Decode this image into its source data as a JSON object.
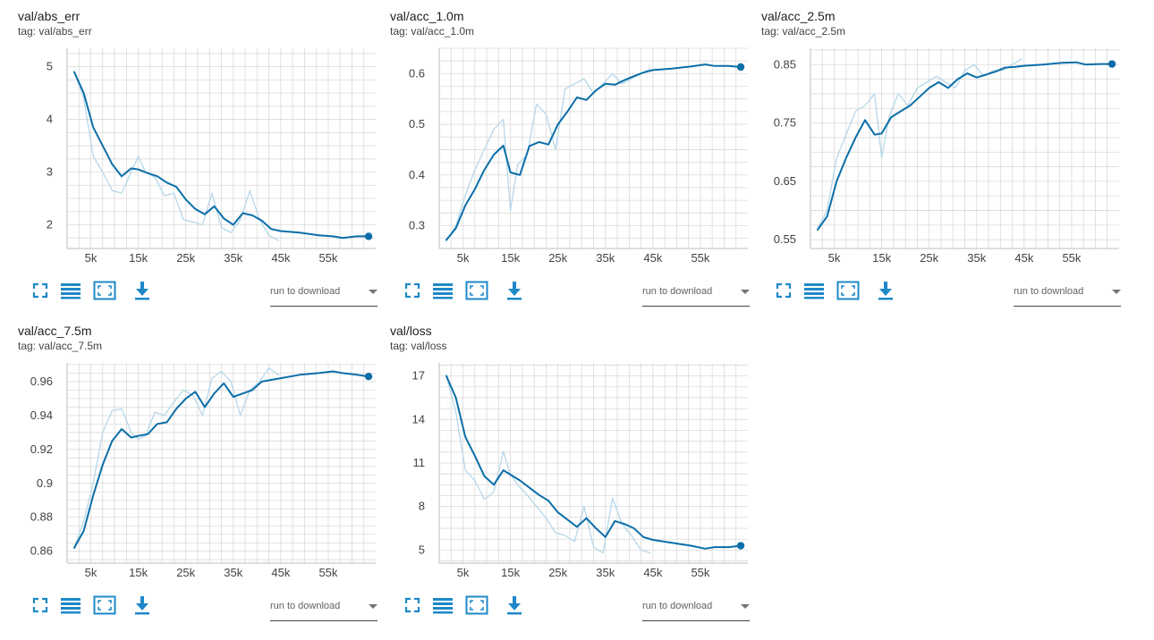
{
  "toolbar": {
    "fit_icon": "fullscreen-icon",
    "data_icon": "list-icon",
    "zoom_icon": "fit-domain-icon",
    "download_icon": "download-icon",
    "download_label": "run to download",
    "accent": "#1e88c8"
  },
  "colors": {
    "smoothed": "#0b6ea8",
    "raw": "#b6d7ea",
    "grid": "#dadada"
  },
  "chart_data": [
    {
      "type": "line",
      "title": "val/abs_err",
      "tag": "tag: val/abs_err",
      "xlim": [
        0,
        65000
      ],
      "ylim": [
        1.55,
        5.35
      ],
      "xticks": [
        5000,
        15000,
        25000,
        35000,
        45000,
        55000
      ],
      "xtick_labels": [
        "5k",
        "15k",
        "25k",
        "35k",
        "45k",
        "55k"
      ],
      "yticks": [
        2,
        3,
        4,
        5
      ],
      "ytick_labels": [
        "2",
        "3",
        "4",
        "5"
      ],
      "series": [
        {
          "role": "raw",
          "x": [
            1500,
            3500,
            5500,
            7500,
            9500,
            11500,
            13500,
            15000,
            16500,
            18500,
            20500,
            22500,
            24500,
            26500,
            28500,
            30500,
            32500,
            34500,
            36500,
            38500,
            40500,
            42500,
            44500
          ],
          "y": [
            4.9,
            4.4,
            3.3,
            3.0,
            2.65,
            2.6,
            3.0,
            3.3,
            3.0,
            2.9,
            2.55,
            2.6,
            2.1,
            2.05,
            2.0,
            2.6,
            1.95,
            1.85,
            2.1,
            2.65,
            2.1,
            1.8,
            1.7
          ]
        },
        {
          "role": "smoothed",
          "x": [
            1500,
            3500,
            5500,
            7500,
            9500,
            11500,
            13500,
            15000,
            17000,
            19000,
            21000,
            23000,
            25000,
            27000,
            29000,
            31000,
            33000,
            35000,
            37000,
            39000,
            41000,
            43000,
            45000,
            49000,
            53000,
            56000,
            58000,
            61000,
            63500
          ],
          "y": [
            4.9,
            4.5,
            3.85,
            3.5,
            3.15,
            2.92,
            3.07,
            3.05,
            2.98,
            2.92,
            2.8,
            2.72,
            2.48,
            2.3,
            2.2,
            2.35,
            2.12,
            2.0,
            2.22,
            2.18,
            2.08,
            1.92,
            1.88,
            1.85,
            1.8,
            1.78,
            1.75,
            1.78,
            1.78
          ]
        }
      ]
    },
    {
      "type": "line",
      "title": "val/acc_1.0m",
      "tag": "tag: val/acc_1.0m",
      "xlim": [
        0,
        65000
      ],
      "ylim": [
        0.255,
        0.65
      ],
      "xticks": [
        5000,
        15000,
        25000,
        35000,
        45000,
        55000
      ],
      "xtick_labels": [
        "5k",
        "15k",
        "25k",
        "35k",
        "45k",
        "55k"
      ],
      "yticks": [
        0.3,
        0.4,
        0.5,
        0.6
      ],
      "ytick_labels": [
        "0.3",
        "0.4",
        "0.5",
        "0.6"
      ],
      "series": [
        {
          "role": "raw",
          "x": [
            1500,
            3500,
            5500,
            7500,
            9500,
            11500,
            13500,
            15000,
            16500,
            18500,
            20500,
            22500,
            24500,
            26500,
            28500,
            30500,
            32500,
            34500,
            36500,
            38500,
            40500,
            42500,
            44500
          ],
          "y": [
            0.27,
            0.3,
            0.36,
            0.41,
            0.45,
            0.49,
            0.51,
            0.33,
            0.42,
            0.44,
            0.54,
            0.52,
            0.45,
            0.57,
            0.58,
            0.59,
            0.56,
            0.58,
            0.6,
            0.58,
            0.59,
            0.6,
            0.61
          ]
        },
        {
          "role": "smoothed",
          "x": [
            1500,
            3500,
            5500,
            7500,
            9500,
            11500,
            13500,
            15000,
            17000,
            19000,
            21000,
            23000,
            25000,
            27000,
            29000,
            31000,
            33000,
            35000,
            37000,
            39000,
            41000,
            43000,
            45000,
            49000,
            53000,
            56000,
            58000,
            61000,
            63500
          ],
          "y": [
            0.272,
            0.295,
            0.34,
            0.372,
            0.41,
            0.44,
            0.458,
            0.405,
            0.4,
            0.457,
            0.465,
            0.46,
            0.5,
            0.525,
            0.553,
            0.548,
            0.567,
            0.58,
            0.578,
            0.587,
            0.595,
            0.602,
            0.607,
            0.61,
            0.614,
            0.618,
            0.615,
            0.615,
            0.613
          ]
        }
      ]
    },
    {
      "type": "line",
      "title": "val/acc_2.5m",
      "tag": "tag: val/acc_2.5m",
      "xlim": [
        0,
        65000
      ],
      "ylim": [
        0.535,
        0.878
      ],
      "xticks": [
        5000,
        15000,
        25000,
        35000,
        45000,
        55000
      ],
      "xtick_labels": [
        "5k",
        "15k",
        "25k",
        "35k",
        "45k",
        "55k"
      ],
      "yticks": [
        0.55,
        0.65,
        0.75,
        0.85
      ],
      "ytick_labels": [
        "0.55",
        "0.65",
        "0.75",
        "0.85"
      ],
      "series": [
        {
          "role": "raw",
          "x": [
            1500,
            3500,
            5500,
            7500,
            9500,
            11500,
            13500,
            15000,
            16500,
            18500,
            20500,
            22500,
            24500,
            26500,
            28500,
            30500,
            32500,
            34500,
            36500,
            38500,
            40500,
            42500,
            44500
          ],
          "y": [
            0.57,
            0.6,
            0.69,
            0.73,
            0.77,
            0.78,
            0.8,
            0.69,
            0.76,
            0.8,
            0.78,
            0.81,
            0.82,
            0.83,
            0.82,
            0.81,
            0.84,
            0.85,
            0.83,
            0.84,
            0.84,
            0.85,
            0.86
          ]
        },
        {
          "role": "smoothed",
          "x": [
            1500,
            3500,
            5500,
            7500,
            9500,
            11500,
            13500,
            15000,
            17000,
            19000,
            21000,
            23000,
            25000,
            27000,
            29000,
            31000,
            33000,
            35000,
            37000,
            39000,
            41000,
            43000,
            45000,
            49000,
            53000,
            56000,
            58000,
            61000,
            63500
          ],
          "y": [
            0.567,
            0.59,
            0.65,
            0.69,
            0.725,
            0.755,
            0.73,
            0.732,
            0.76,
            0.77,
            0.78,
            0.795,
            0.81,
            0.82,
            0.81,
            0.825,
            0.835,
            0.828,
            0.833,
            0.838,
            0.845,
            0.846,
            0.848,
            0.85,
            0.853,
            0.854,
            0.85,
            0.851,
            0.851
          ]
        }
      ]
    },
    {
      "type": "line",
      "title": "val/acc_7.5m",
      "tag": "tag: val/acc_7.5m",
      "xlim": [
        0,
        65000
      ],
      "ylim": [
        0.853,
        0.971
      ],
      "xticks": [
        5000,
        15000,
        25000,
        35000,
        45000,
        55000
      ],
      "xtick_labels": [
        "5k",
        "15k",
        "25k",
        "35k",
        "45k",
        "55k"
      ],
      "yticks": [
        0.86,
        0.88,
        0.9,
        0.92,
        0.94,
        0.96
      ],
      "ytick_labels": [
        "0.86",
        "0.88",
        "0.9",
        "0.92",
        "0.94",
        "0.96"
      ],
      "series": [
        {
          "role": "raw",
          "x": [
            1500,
            3500,
            5500,
            7500,
            9500,
            11500,
            13500,
            15000,
            16500,
            18500,
            20500,
            22500,
            24500,
            26500,
            28500,
            30500,
            32500,
            34500,
            36500,
            38500,
            40500,
            42500,
            44500
          ],
          "y": [
            0.862,
            0.878,
            0.9,
            0.93,
            0.943,
            0.944,
            0.93,
            0.926,
            0.928,
            0.942,
            0.94,
            0.948,
            0.955,
            0.952,
            0.94,
            0.962,
            0.966,
            0.96,
            0.94,
            0.955,
            0.96,
            0.968,
            0.964
          ]
        },
        {
          "role": "smoothed",
          "x": [
            1500,
            3500,
            5500,
            7500,
            9500,
            11500,
            13500,
            15000,
            17000,
            19000,
            21000,
            23000,
            25000,
            27000,
            29000,
            31000,
            33000,
            35000,
            37000,
            39000,
            41000,
            43000,
            45000,
            49000,
            53000,
            56000,
            58000,
            61000,
            63500
          ],
          "y": [
            0.862,
            0.872,
            0.893,
            0.911,
            0.925,
            0.932,
            0.927,
            0.928,
            0.929,
            0.935,
            0.936,
            0.944,
            0.95,
            0.954,
            0.945,
            0.953,
            0.959,
            0.951,
            0.953,
            0.955,
            0.96,
            0.961,
            0.962,
            0.964,
            0.965,
            0.966,
            0.965,
            0.964,
            0.963
          ]
        }
      ]
    },
    {
      "type": "line",
      "title": "val/loss",
      "tag": "tag: val/loss",
      "xlim": [
        0,
        65000
      ],
      "ylim": [
        4.1,
        17.9
      ],
      "xticks": [
        5000,
        15000,
        25000,
        35000,
        45000,
        55000
      ],
      "xtick_labels": [
        "5k",
        "15k",
        "25k",
        "35k",
        "45k",
        "55k"
      ],
      "yticks": [
        5,
        8,
        11,
        14,
        17
      ],
      "ytick_labels": [
        "5",
        "8",
        "11",
        "14",
        "17"
      ],
      "series": [
        {
          "role": "raw",
          "x": [
            1500,
            3500,
            5500,
            7500,
            9500,
            11500,
            13500,
            15000,
            16500,
            18500,
            20500,
            22500,
            24500,
            26500,
            28500,
            30500,
            32500,
            34500,
            36500,
            38500,
            40500,
            42500,
            44500
          ],
          "y": [
            17,
            14.5,
            10.5,
            9.8,
            8.5,
            9.0,
            11.8,
            10.2,
            9.5,
            8.8,
            8.0,
            7.2,
            6.2,
            6.0,
            5.6,
            8.0,
            5.2,
            4.8,
            8.6,
            6.8,
            6.0,
            5.0,
            4.8
          ]
        },
        {
          "role": "smoothed",
          "x": [
            1500,
            3500,
            5500,
            7500,
            9500,
            11500,
            13500,
            15000,
            17000,
            19000,
            21000,
            23000,
            25000,
            27000,
            29000,
            31000,
            33000,
            35000,
            37000,
            39000,
            41000,
            43000,
            45000,
            49000,
            53000,
            56000,
            58000,
            61000,
            63500
          ],
          "y": [
            17,
            15.5,
            12.8,
            11.5,
            10.1,
            9.5,
            10.5,
            10.2,
            9.8,
            9.3,
            8.8,
            8.4,
            7.6,
            7.1,
            6.6,
            7.2,
            6.5,
            5.9,
            7.0,
            6.8,
            6.5,
            5.9,
            5.7,
            5.5,
            5.3,
            5.1,
            5.2,
            5.2,
            5.3
          ]
        }
      ]
    }
  ]
}
